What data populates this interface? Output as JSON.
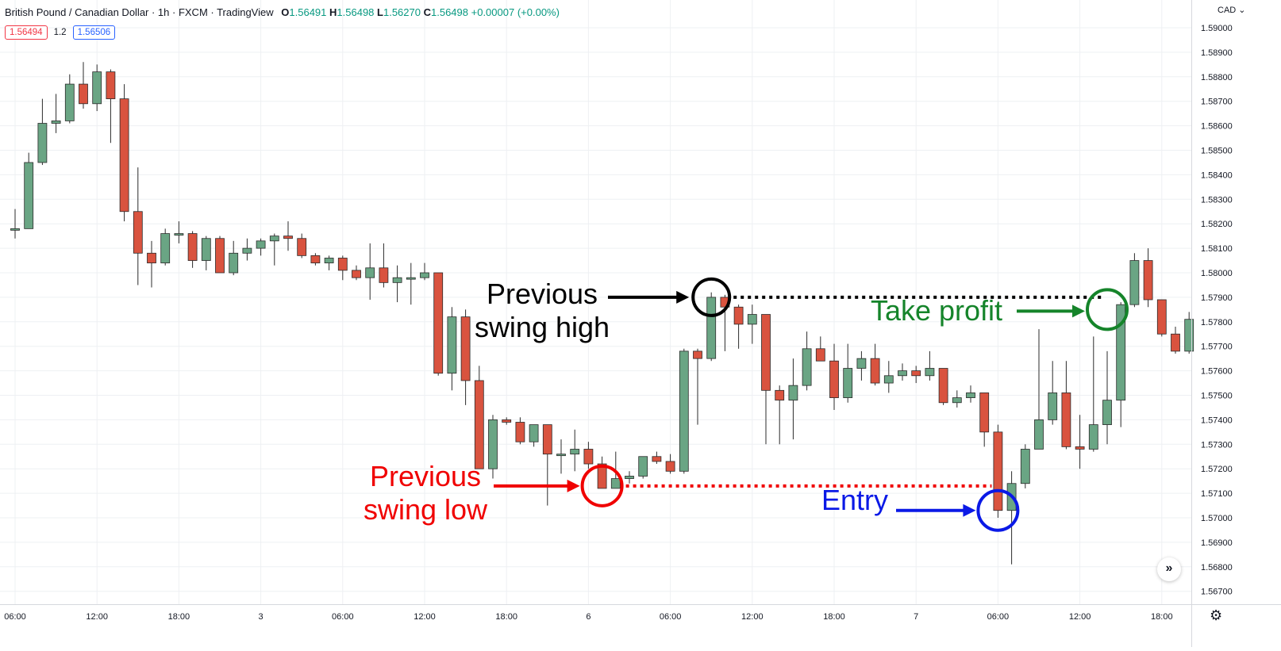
{
  "header": {
    "symbol": "British Pound / Canadian Dollar · 1h · FXCM · TradingView",
    "ohlc": {
      "o_label": "O",
      "o": "1.56491",
      "h_label": "H",
      "h": "1.56498",
      "l_label": "L",
      "l": "1.56270",
      "c_label": "C",
      "c": "1.56498",
      "change": "+0.00007 (+0.00%)"
    },
    "bid": "1.56494",
    "spread": "1.2",
    "ask": "1.56506",
    "currency": "CAD"
  },
  "icons": {
    "scroll": "double-chevron-right-icon",
    "settings": "gear-icon"
  },
  "colors": {
    "up": "#6aa584",
    "down": "#d9533f",
    "grid": "#eef0f3"
  },
  "chart_data": {
    "type": "candlestick",
    "title": "",
    "xlabel": "",
    "ylabel": "",
    "ylim": [
      1.5663,
      1.5905
    ],
    "y_ticks": [
      "1.59000",
      "1.58900",
      "1.58800",
      "1.58700",
      "1.58600",
      "1.58500",
      "1.58400",
      "1.58300",
      "1.58200",
      "1.58100",
      "1.58000",
      "1.57900",
      "1.57800",
      "1.57700",
      "1.57600",
      "1.57500",
      "1.57400",
      "1.57300",
      "1.57200",
      "1.57100",
      "1.57000",
      "1.56900",
      "1.56800",
      "1.56700"
    ],
    "x_tick_labels": [
      {
        "label": "06:00",
        "index": 0
      },
      {
        "label": "12:00",
        "index": 6
      },
      {
        "label": "18:00",
        "index": 12
      },
      {
        "label": "3",
        "index": 18
      },
      {
        "label": "06:00",
        "index": 24
      },
      {
        "label": "12:00",
        "index": 30
      },
      {
        "label": "18:00",
        "index": 36
      },
      {
        "label": "6",
        "index": 42
      },
      {
        "label": "06:00",
        "index": 48
      },
      {
        "label": "12:00",
        "index": 54
      },
      {
        "label": "18:00",
        "index": 60
      },
      {
        "label": "7",
        "index": 66
      },
      {
        "label": "06:00",
        "index": 72
      },
      {
        "label": "12:00",
        "index": 78
      },
      {
        "label": "18:00",
        "index": 84
      }
    ],
    "candles": [
      {
        "o": 1.5818,
        "h": 1.5826,
        "l": 1.5814,
        "c": 1.5818
      },
      {
        "o": 1.5818,
        "h": 1.5849,
        "l": 1.5818,
        "c": 1.5845
      },
      {
        "o": 1.5845,
        "h": 1.5871,
        "l": 1.5844,
        "c": 1.5861
      },
      {
        "o": 1.5861,
        "h": 1.5873,
        "l": 1.5857,
        "c": 1.5862
      },
      {
        "o": 1.5862,
        "h": 1.5881,
        "l": 1.5861,
        "c": 1.5877
      },
      {
        "o": 1.5877,
        "h": 1.5886,
        "l": 1.5867,
        "c": 1.5869
      },
      {
        "o": 1.5869,
        "h": 1.5885,
        "l": 1.5866,
        "c": 1.5882
      },
      {
        "o": 1.5882,
        "h": 1.5883,
        "l": 1.5853,
        "c": 1.5871
      },
      {
        "o": 1.5871,
        "h": 1.5877,
        "l": 1.5821,
        "c": 1.5825
      },
      {
        "o": 1.5825,
        "h": 1.5843,
        "l": 1.5795,
        "c": 1.5808
      },
      {
        "o": 1.5808,
        "h": 1.5813,
        "l": 1.5794,
        "c": 1.5804
      },
      {
        "o": 1.5804,
        "h": 1.5818,
        "l": 1.5803,
        "c": 1.5816
      },
      {
        "o": 1.5816,
        "h": 1.5821,
        "l": 1.5812,
        "c": 1.5816
      },
      {
        "o": 1.5816,
        "h": 1.5817,
        "l": 1.5802,
        "c": 1.5805
      },
      {
        "o": 1.5805,
        "h": 1.5815,
        "l": 1.5801,
        "c": 1.5814
      },
      {
        "o": 1.5814,
        "h": 1.5815,
        "l": 1.58,
        "c": 1.58
      },
      {
        "o": 1.58,
        "h": 1.5813,
        "l": 1.5799,
        "c": 1.5808
      },
      {
        "o": 1.5808,
        "h": 1.5814,
        "l": 1.5805,
        "c": 1.581
      },
      {
        "o": 1.581,
        "h": 1.5814,
        "l": 1.5807,
        "c": 1.5813
      },
      {
        "o": 1.5813,
        "h": 1.5816,
        "l": 1.5803,
        "c": 1.5815
      },
      {
        "o": 1.5815,
        "h": 1.5821,
        "l": 1.5809,
        "c": 1.5814
      },
      {
        "o": 1.5814,
        "h": 1.5816,
        "l": 1.5806,
        "c": 1.5807
      },
      {
        "o": 1.5807,
        "h": 1.5808,
        "l": 1.5803,
        "c": 1.5804
      },
      {
        "o": 1.5804,
        "h": 1.5807,
        "l": 1.5801,
        "c": 1.5806
      },
      {
        "o": 1.5806,
        "h": 1.5807,
        "l": 1.5797,
        "c": 1.5801
      },
      {
        "o": 1.5801,
        "h": 1.5803,
        "l": 1.5797,
        "c": 1.5798
      },
      {
        "o": 1.5798,
        "h": 1.5812,
        "l": 1.5789,
        "c": 1.5802
      },
      {
        "o": 1.5802,
        "h": 1.5812,
        "l": 1.5794,
        "c": 1.5796
      },
      {
        "o": 1.5796,
        "h": 1.5803,
        "l": 1.5788,
        "c": 1.5798
      },
      {
        "o": 1.5798,
        "h": 1.5804,
        "l": 1.5787,
        "c": 1.5798
      },
      {
        "o": 1.5798,
        "h": 1.5804,
        "l": 1.5797,
        "c": 1.58
      },
      {
        "o": 1.58,
        "h": 1.58,
        "l": 1.5758,
        "c": 1.5759
      },
      {
        "o": 1.5759,
        "h": 1.5786,
        "l": 1.5752,
        "c": 1.5782
      },
      {
        "o": 1.5782,
        "h": 1.5785,
        "l": 1.5746,
        "c": 1.5756
      },
      {
        "o": 1.5756,
        "h": 1.5762,
        "l": 1.572,
        "c": 1.572
      },
      {
        "o": 1.572,
        "h": 1.5742,
        "l": 1.5716,
        "c": 1.574
      },
      {
        "o": 1.574,
        "h": 1.5741,
        "l": 1.5738,
        "c": 1.5739
      },
      {
        "o": 1.5739,
        "h": 1.5741,
        "l": 1.573,
        "c": 1.5731
      },
      {
        "o": 1.5731,
        "h": 1.5738,
        "l": 1.5729,
        "c": 1.5738
      },
      {
        "o": 1.5738,
        "h": 1.5738,
        "l": 1.5705,
        "c": 1.5726
      },
      {
        "o": 1.5726,
        "h": 1.5732,
        "l": 1.5718,
        "c": 1.5726
      },
      {
        "o": 1.5726,
        "h": 1.5736,
        "l": 1.5719,
        "c": 1.5728
      },
      {
        "o": 1.5728,
        "h": 1.5731,
        "l": 1.572,
        "c": 1.5722
      },
      {
        "o": 1.5722,
        "h": 1.5725,
        "l": 1.5712,
        "c": 1.5712
      },
      {
        "o": 1.5712,
        "h": 1.5727,
        "l": 1.5712,
        "c": 1.5716
      },
      {
        "o": 1.5716,
        "h": 1.5719,
        "l": 1.5714,
        "c": 1.5717
      },
      {
        "o": 1.5717,
        "h": 1.5725,
        "l": 1.5716,
        "c": 1.5725
      },
      {
        "o": 1.5725,
        "h": 1.5727,
        "l": 1.5722,
        "c": 1.5723
      },
      {
        "o": 1.5723,
        "h": 1.5726,
        "l": 1.5718,
        "c": 1.5719
      },
      {
        "o": 1.5719,
        "h": 1.5769,
        "l": 1.5718,
        "c": 1.5768
      },
      {
        "o": 1.5768,
        "h": 1.5769,
        "l": 1.5738,
        "c": 1.5765
      },
      {
        "o": 1.5765,
        "h": 1.5792,
        "l": 1.5764,
        "c": 1.579
      },
      {
        "o": 1.579,
        "h": 1.5791,
        "l": 1.5768,
        "c": 1.5786
      },
      {
        "o": 1.5786,
        "h": 1.5787,
        "l": 1.5769,
        "c": 1.5779
      },
      {
        "o": 1.5779,
        "h": 1.5787,
        "l": 1.5771,
        "c": 1.5783
      },
      {
        "o": 1.5783,
        "h": 1.5783,
        "l": 1.573,
        "c": 1.5752
      },
      {
        "o": 1.5752,
        "h": 1.5754,
        "l": 1.573,
        "c": 1.5748
      },
      {
        "o": 1.5748,
        "h": 1.5765,
        "l": 1.5732,
        "c": 1.5754
      },
      {
        "o": 1.5754,
        "h": 1.5776,
        "l": 1.5752,
        "c": 1.5769
      },
      {
        "o": 1.5769,
        "h": 1.5774,
        "l": 1.5764,
        "c": 1.5764
      },
      {
        "o": 1.5764,
        "h": 1.5771,
        "l": 1.5744,
        "c": 1.5749
      },
      {
        "o": 1.5749,
        "h": 1.5771,
        "l": 1.5747,
        "c": 1.5761
      },
      {
        "o": 1.5761,
        "h": 1.5768,
        "l": 1.5756,
        "c": 1.5765
      },
      {
        "o": 1.5765,
        "h": 1.5771,
        "l": 1.5754,
        "c": 1.5755
      },
      {
        "o": 1.5755,
        "h": 1.5764,
        "l": 1.5751,
        "c": 1.5758
      },
      {
        "o": 1.5758,
        "h": 1.5763,
        "l": 1.5756,
        "c": 1.576
      },
      {
        "o": 1.576,
        "h": 1.5762,
        "l": 1.5755,
        "c": 1.5758
      },
      {
        "o": 1.5758,
        "h": 1.5768,
        "l": 1.5756,
        "c": 1.5761
      },
      {
        "o": 1.5761,
        "h": 1.5761,
        "l": 1.5746,
        "c": 1.5747
      },
      {
        "o": 1.5747,
        "h": 1.5752,
        "l": 1.5745,
        "c": 1.5749
      },
      {
        "o": 1.5749,
        "h": 1.5754,
        "l": 1.5747,
        "c": 1.5751
      },
      {
        "o": 1.5751,
        "h": 1.5751,
        "l": 1.5729,
        "c": 1.5735
      },
      {
        "o": 1.5735,
        "h": 1.5738,
        "l": 1.57,
        "c": 1.5703
      },
      {
        "o": 1.5703,
        "h": 1.5719,
        "l": 1.5681,
        "c": 1.5714
      },
      {
        "o": 1.5714,
        "h": 1.573,
        "l": 1.5712,
        "c": 1.5728
      },
      {
        "o": 1.5728,
        "h": 1.5777,
        "l": 1.5728,
        "c": 1.574
      },
      {
        "o": 1.574,
        "h": 1.5764,
        "l": 1.5738,
        "c": 1.5751
      },
      {
        "o": 1.5751,
        "h": 1.5764,
        "l": 1.5728,
        "c": 1.5729
      },
      {
        "o": 1.5729,
        "h": 1.5742,
        "l": 1.572,
        "c": 1.5728
      },
      {
        "o": 1.5728,
        "h": 1.5774,
        "l": 1.5727,
        "c": 1.5738
      },
      {
        "o": 1.5738,
        "h": 1.5768,
        "l": 1.573,
        "c": 1.5748
      },
      {
        "o": 1.5748,
        "h": 1.5788,
        "l": 1.5737,
        "c": 1.5787
      },
      {
        "o": 1.5787,
        "h": 1.5808,
        "l": 1.5786,
        "c": 1.5805
      },
      {
        "o": 1.5805,
        "h": 1.581,
        "l": 1.5786,
        "c": 1.5789
      },
      {
        "o": 1.5789,
        "h": 1.5789,
        "l": 1.5774,
        "c": 1.5775
      },
      {
        "o": 1.5775,
        "h": 1.5778,
        "l": 1.5767,
        "c": 1.5768
      },
      {
        "o": 1.5768,
        "h": 1.5784,
        "l": 1.5767,
        "c": 1.5781
      }
    ],
    "annotations": {
      "swing_high": {
        "line1": "Previous",
        "line2": "swing high",
        "index": 51,
        "price": 1.579,
        "color": "#000000"
      },
      "swing_low": {
        "line1": "Previous",
        "line2": "swing low",
        "index": 43,
        "price": 1.5713,
        "color": "#f00000"
      },
      "entry": {
        "label": "Entry",
        "index": 72,
        "price": 1.5703,
        "color": "#0a19e6"
      },
      "take_profit": {
        "label": "Take profit",
        "index": 80,
        "price": 1.5785,
        "color": "#15842a"
      }
    }
  }
}
